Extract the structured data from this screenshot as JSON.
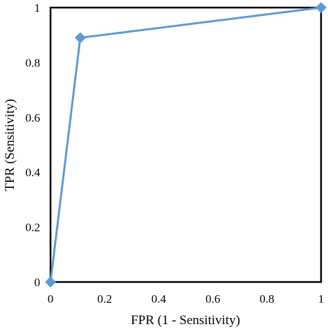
{
  "chart_data": {
    "type": "line",
    "xlabel": "FPR (1 - Sensitivity)",
    "ylabel": "TPR (Sensitivity)",
    "xlim": [
      0,
      1
    ],
    "ylim": [
      0,
      1
    ],
    "x_ticks": [
      "0",
      "0.2",
      "0.4",
      "0.6",
      "0.8",
      "1"
    ],
    "y_ticks": [
      "0",
      "0.2",
      "0.4",
      "0.6",
      "0.8",
      "1"
    ],
    "grid": false,
    "legend": "none",
    "series": [
      {
        "color": "#5b9bd5",
        "marker": "diamond",
        "x": [
          0,
          0.11,
          1
        ],
        "y": [
          0,
          0.89,
          1
        ]
      }
    ]
  }
}
